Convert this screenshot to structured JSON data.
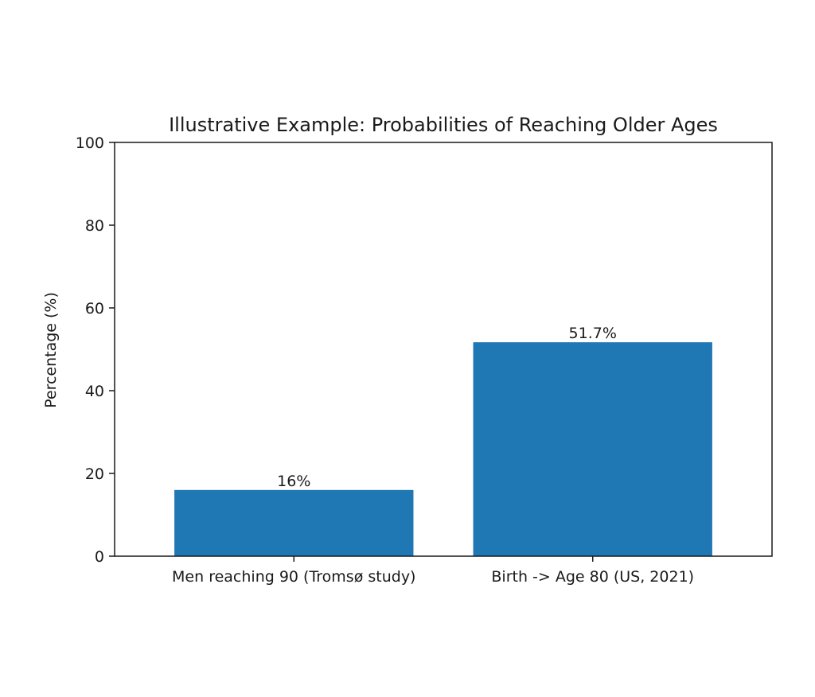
{
  "chart_data": {
    "type": "bar",
    "title": "Illustrative Example: Probabilities of Reaching Older Ages",
    "xlabel": "",
    "ylabel": "Percentage (%)",
    "categories": [
      "Men reaching 90 (Tromsø study)",
      "Birth -> Age 80 (US, 2021)"
    ],
    "values": [
      16,
      51.7
    ],
    "data_labels": [
      "16%",
      "51.7%"
    ],
    "ylim": [
      0,
      100
    ],
    "yticks": [
      0,
      20,
      40,
      60,
      80,
      100
    ],
    "ytick_labels": [
      "0",
      "20",
      "40",
      "60",
      "80",
      "100"
    ],
    "grid": false,
    "legend": "none",
    "bar_color": "#1f77b4"
  }
}
